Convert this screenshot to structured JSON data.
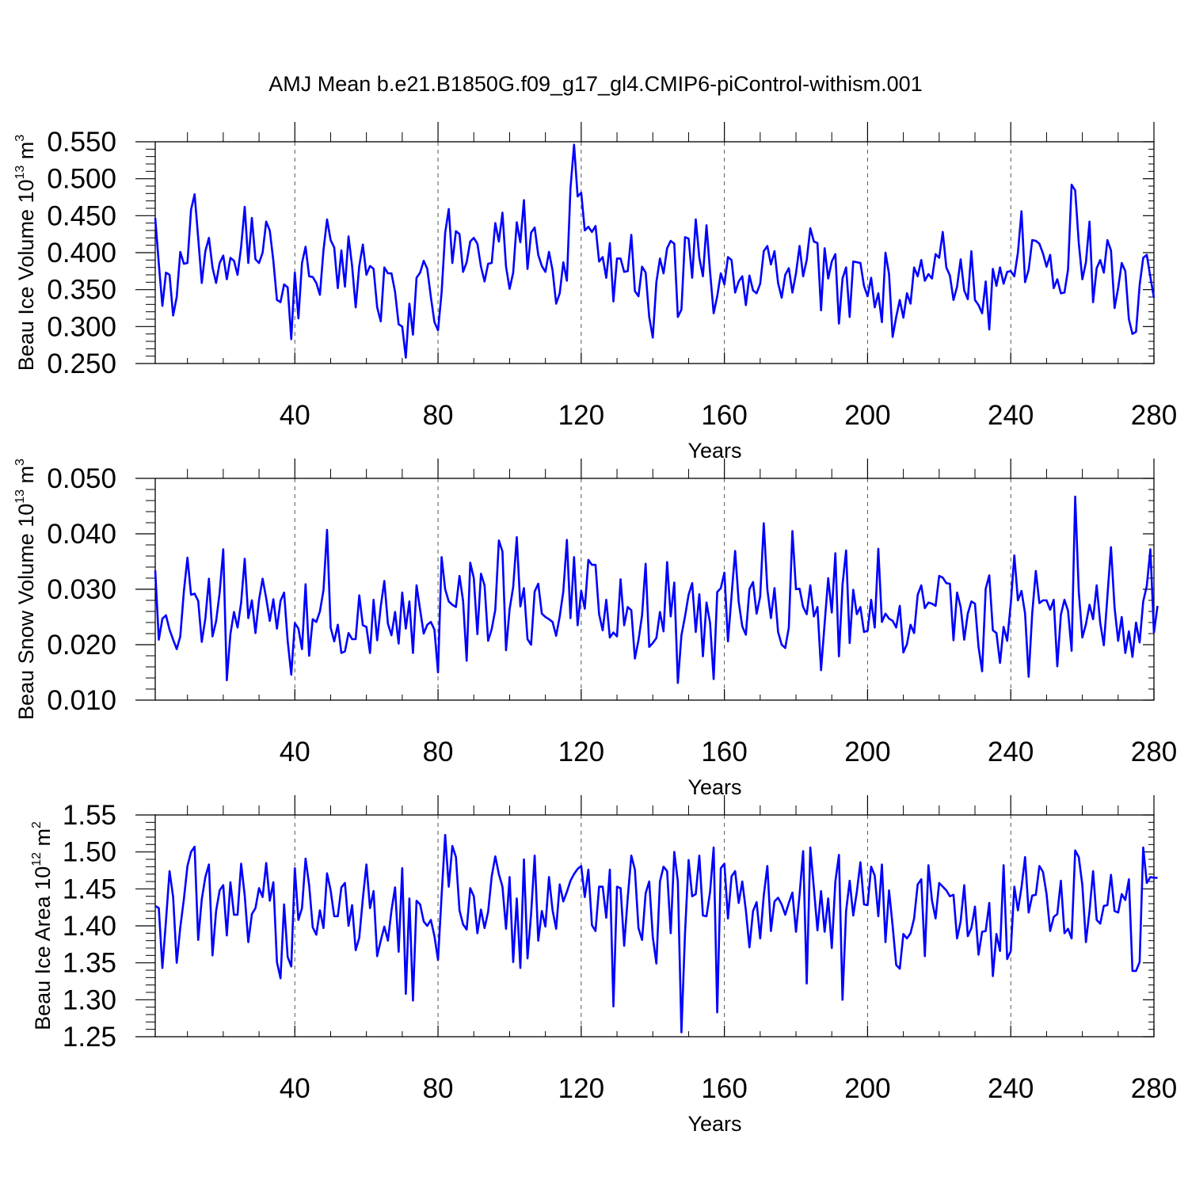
{
  "title": "AMJ Mean b.e21.B1850G.f09_g17_gl4.CMIP6-piControl-withism.001",
  "colors": {
    "series": "#0000ff",
    "axis": "#000000",
    "grid": "#555555"
  },
  "chart_data": [
    {
      "type": "line",
      "ylabel": {
        "main": "Beau Ice Volume 10",
        "exp": "13",
        "unit": " m",
        "unit_exp": "3"
      },
      "xlabel": "Years",
      "xlim": [
        1,
        280
      ],
      "ylim": [
        0.25,
        0.55
      ],
      "xticks": [
        40,
        80,
        120,
        160,
        200,
        240,
        280
      ],
      "xtick_labels": [
        "40",
        "80",
        "120",
        "160",
        "200",
        "240",
        "280"
      ],
      "yticks": [
        0.25,
        0.3,
        0.35,
        0.4,
        0.45,
        0.5,
        0.55
      ],
      "ytick_labels": [
        "0.250",
        "0.300",
        "0.350",
        "0.400",
        "0.450",
        "0.500",
        "0.550"
      ],
      "x_start": 1,
      "series": [
        {
          "name": "Beau Ice Volume",
          "values": [
            0.447,
            0.385,
            0.328,
            0.373,
            0.37,
            0.315,
            0.34,
            0.401,
            0.385,
            0.386,
            0.458,
            0.479,
            0.42,
            0.359,
            0.402,
            0.42,
            0.38,
            0.359,
            0.386,
            0.396,
            0.364,
            0.393,
            0.389,
            0.37,
            0.408,
            0.462,
            0.386,
            0.447,
            0.391,
            0.386,
            0.4,
            0.442,
            0.43,
            0.389,
            0.336,
            0.333,
            0.357,
            0.353,
            0.283,
            0.373,
            0.311,
            0.386,
            0.408,
            0.368,
            0.367,
            0.359,
            0.343,
            0.403,
            0.445,
            0.417,
            0.407,
            0.352,
            0.403,
            0.354,
            0.422,
            0.382,
            0.326,
            0.382,
            0.411,
            0.37,
            0.382,
            0.378,
            0.326,
            0.307,
            0.38,
            0.372,
            0.372,
            0.347,
            0.303,
            0.3,
            0.258,
            0.331,
            0.289,
            0.366,
            0.373,
            0.389,
            0.378,
            0.34,
            0.306,
            0.295,
            0.346,
            0.427,
            0.459,
            0.386,
            0.429,
            0.425,
            0.374,
            0.387,
            0.415,
            0.42,
            0.412,
            0.381,
            0.361,
            0.385,
            0.386,
            0.44,
            0.415,
            0.454,
            0.381,
            0.351,
            0.373,
            0.441,
            0.414,
            0.471,
            0.378,
            0.427,
            0.434,
            0.397,
            0.382,
            0.374,
            0.401,
            0.376,
            0.331,
            0.345,
            0.387,
            0.362,
            0.487,
            0.546,
            0.476,
            0.481,
            0.43,
            0.435,
            0.428,
            0.436,
            0.388,
            0.394,
            0.366,
            0.413,
            0.334,
            0.392,
            0.392,
            0.374,
            0.375,
            0.424,
            0.348,
            0.341,
            0.381,
            0.373,
            0.313,
            0.285,
            0.36,
            0.392,
            0.372,
            0.406,
            0.416,
            0.412,
            0.313,
            0.323,
            0.421,
            0.419,
            0.366,
            0.445,
            0.393,
            0.368,
            0.437,
            0.374,
            0.318,
            0.341,
            0.372,
            0.357,
            0.394,
            0.39,
            0.346,
            0.361,
            0.368,
            0.329,
            0.369,
            0.349,
            0.345,
            0.358,
            0.402,
            0.409,
            0.384,
            0.402,
            0.359,
            0.339,
            0.37,
            0.379,
            0.346,
            0.372,
            0.409,
            0.368,
            0.39,
            0.433,
            0.415,
            0.413,
            0.322,
            0.406,
            0.365,
            0.388,
            0.398,
            0.304,
            0.365,
            0.38,
            0.313,
            0.388,
            0.387,
            0.386,
            0.355,
            0.341,
            0.366,
            0.326,
            0.345,
            0.306,
            0.4,
            0.371,
            0.286,
            0.313,
            0.336,
            0.312,
            0.345,
            0.331,
            0.38,
            0.368,
            0.39,
            0.362,
            0.371,
            0.365,
            0.398,
            0.393,
            0.428,
            0.38,
            0.369,
            0.336,
            0.354,
            0.391,
            0.349,
            0.337,
            0.402,
            0.336,
            0.329,
            0.318,
            0.361,
            0.296,
            0.378,
            0.355,
            0.38,
            0.358,
            0.374,
            0.375,
            0.368,
            0.4,
            0.456,
            0.36,
            0.377,
            0.417,
            0.416,
            0.412,
            0.399,
            0.381,
            0.397,
            0.352,
            0.364,
            0.345,
            0.346,
            0.377,
            0.492,
            0.484,
            0.413,
            0.364,
            0.387,
            0.442,
            0.333,
            0.379,
            0.39,
            0.373,
            0.417,
            0.403,
            0.325,
            0.352,
            0.386,
            0.375,
            0.31,
            0.29,
            0.293,
            0.356,
            0.393,
            0.397,
            0.367,
            0.339
          ]
        }
      ]
    },
    {
      "type": "line",
      "ylabel": {
        "main": "Beau Snow Volume 10",
        "exp": "13",
        "unit": " m",
        "unit_exp": "3"
      },
      "xlabel": "Years",
      "xlim": [
        1,
        280
      ],
      "ylim": [
        0.01,
        0.05
      ],
      "xticks": [
        40,
        80,
        120,
        160,
        200,
        240,
        280
      ],
      "xtick_labels": [
        "40",
        "80",
        "120",
        "160",
        "200",
        "240",
        "280"
      ],
      "yticks": [
        0.01,
        0.02,
        0.03,
        0.04,
        0.05
      ],
      "ytick_labels": [
        "0.010",
        "0.020",
        "0.030",
        "0.040",
        "0.050"
      ],
      "x_start": 1,
      "series": [
        {
          "name": "Beau Snow Volume",
          "values": [
            0.0334,
            0.0209,
            0.0247,
            0.0253,
            0.0227,
            0.0209,
            0.0192,
            0.0215,
            0.0296,
            0.0357,
            0.029,
            0.0292,
            0.0279,
            0.0205,
            0.0247,
            0.0319,
            0.0215,
            0.0242,
            0.0294,
            0.0372,
            0.0136,
            0.0219,
            0.0259,
            0.0231,
            0.0276,
            0.0355,
            0.0248,
            0.028,
            0.0221,
            0.0281,
            0.0319,
            0.0284,
            0.0243,
            0.0282,
            0.0229,
            0.0279,
            0.0294,
            0.0207,
            0.0146,
            0.0239,
            0.0229,
            0.0192,
            0.0309,
            0.018,
            0.0246,
            0.0241,
            0.026,
            0.0298,
            0.0407,
            0.0231,
            0.0206,
            0.0236,
            0.0185,
            0.0188,
            0.0221,
            0.021,
            0.021,
            0.0289,
            0.0235,
            0.0232,
            0.0185,
            0.0281,
            0.0208,
            0.0269,
            0.0315,
            0.0238,
            0.0217,
            0.0259,
            0.0202,
            0.0294,
            0.0229,
            0.0278,
            0.0185,
            0.0307,
            0.0263,
            0.022,
            0.0236,
            0.0241,
            0.0227,
            0.015,
            0.0358,
            0.03,
            0.0278,
            0.0272,
            0.0268,
            0.0324,
            0.0279,
            0.0171,
            0.0348,
            0.032,
            0.0219,
            0.0328,
            0.0307,
            0.0207,
            0.0228,
            0.0263,
            0.0388,
            0.0368,
            0.019,
            0.0264,
            0.0304,
            0.0394,
            0.0269,
            0.0302,
            0.021,
            0.02,
            0.0296,
            0.031,
            0.0256,
            0.025,
            0.0246,
            0.0241,
            0.0216,
            0.0251,
            0.0296,
            0.0389,
            0.0248,
            0.0358,
            0.0235,
            0.0297,
            0.0265,
            0.0353,
            0.0344,
            0.0344,
            0.0255,
            0.0226,
            0.0281,
            0.0213,
            0.0222,
            0.0215,
            0.0318,
            0.0235,
            0.0268,
            0.0262,
            0.0175,
            0.0208,
            0.0253,
            0.0346,
            0.0196,
            0.0203,
            0.0212,
            0.0259,
            0.0224,
            0.0349,
            0.0251,
            0.0312,
            0.0131,
            0.0217,
            0.0251,
            0.029,
            0.0311,
            0.0223,
            0.0291,
            0.0179,
            0.0276,
            0.0239,
            0.0138,
            0.0295,
            0.0302,
            0.033,
            0.0206,
            0.0288,
            0.0369,
            0.0277,
            0.0233,
            0.0218,
            0.03,
            0.0313,
            0.0256,
            0.0287,
            0.0419,
            0.03,
            0.0248,
            0.0302,
            0.0223,
            0.02,
            0.0194,
            0.0231,
            0.0405,
            0.03,
            0.0301,
            0.0268,
            0.0255,
            0.0307,
            0.0251,
            0.0268,
            0.0154,
            0.0238,
            0.032,
            0.0258,
            0.0365,
            0.0179,
            0.0308,
            0.037,
            0.0203,
            0.0299,
            0.0255,
            0.0268,
            0.0223,
            0.0225,
            0.0281,
            0.0231,
            0.0373,
            0.0241,
            0.0256,
            0.0247,
            0.0243,
            0.0231,
            0.027,
            0.0186,
            0.0201,
            0.0236,
            0.0221,
            0.029,
            0.0307,
            0.0266,
            0.0276,
            0.0274,
            0.027,
            0.0324,
            0.0321,
            0.0311,
            0.031,
            0.0208,
            0.0294,
            0.0268,
            0.0209,
            0.0256,
            0.0278,
            0.0274,
            0.0196,
            0.0152,
            0.0301,
            0.0325,
            0.0226,
            0.0221,
            0.0167,
            0.0232,
            0.0207,
            0.0274,
            0.0361,
            0.028,
            0.0297,
            0.0256,
            0.0142,
            0.0257,
            0.0333,
            0.0275,
            0.028,
            0.028,
            0.0263,
            0.0281,
            0.0161,
            0.0254,
            0.0281,
            0.0261,
            0.0189,
            0.0467,
            0.0296,
            0.0213,
            0.0237,
            0.0272,
            0.0246,
            0.0307,
            0.0239,
            0.0199,
            0.0287,
            0.0376,
            0.0267,
            0.0207,
            0.025,
            0.0185,
            0.0224,
            0.0178,
            0.024,
            0.0204,
            0.0278,
            0.0306,
            0.0372,
            0.0222,
            0.027
          ]
        }
      ]
    },
    {
      "type": "line",
      "ylabel": {
        "main": "Beau Ice Area 10",
        "exp": "12",
        "unit": " m",
        "unit_exp": "2"
      },
      "xlabel": "Years",
      "xlim": [
        1,
        280
      ],
      "ylim": [
        1.25,
        1.55
      ],
      "xticks": [
        40,
        80,
        120,
        160,
        200,
        240,
        280
      ],
      "xtick_labels": [
        "40",
        "80",
        "120",
        "160",
        "200",
        "240",
        "280"
      ],
      "yticks": [
        1.25,
        1.3,
        1.35,
        1.4,
        1.45,
        1.5,
        1.55
      ],
      "ytick_labels": [
        "1.25",
        "1.30",
        "1.35",
        "1.40",
        "1.45",
        "1.50",
        "1.55"
      ],
      "x_start": 1,
      "series": [
        {
          "name": "Beau Ice Area",
          "values": [
            1.427,
            1.424,
            1.343,
            1.407,
            1.474,
            1.439,
            1.35,
            1.398,
            1.436,
            1.481,
            1.5,
            1.507,
            1.381,
            1.436,
            1.466,
            1.483,
            1.36,
            1.42,
            1.448,
            1.455,
            1.387,
            1.459,
            1.415,
            1.415,
            1.484,
            1.441,
            1.378,
            1.416,
            1.424,
            1.451,
            1.439,
            1.485,
            1.434,
            1.459,
            1.351,
            1.329,
            1.429,
            1.358,
            1.345,
            1.478,
            1.408,
            1.424,
            1.491,
            1.455,
            1.398,
            1.388,
            1.421,
            1.397,
            1.471,
            1.448,
            1.413,
            1.413,
            1.452,
            1.458,
            1.4,
            1.428,
            1.367,
            1.384,
            1.437,
            1.483,
            1.424,
            1.447,
            1.359,
            1.38,
            1.399,
            1.38,
            1.421,
            1.452,
            1.365,
            1.478,
            1.308,
            1.437,
            1.299,
            1.434,
            1.429,
            1.406,
            1.4,
            1.408,
            1.386,
            1.354,
            1.441,
            1.523,
            1.453,
            1.508,
            1.493,
            1.421,
            1.402,
            1.395,
            1.451,
            1.44,
            1.39,
            1.422,
            1.397,
            1.419,
            1.467,
            1.494,
            1.47,
            1.453,
            1.396,
            1.466,
            1.351,
            1.437,
            1.343,
            1.49,
            1.356,
            1.416,
            1.495,
            1.38,
            1.42,
            1.399,
            1.466,
            1.421,
            1.396,
            1.456,
            1.433,
            1.446,
            1.461,
            1.47,
            1.477,
            1.481,
            1.439,
            1.476,
            1.401,
            1.393,
            1.453,
            1.453,
            1.411,
            1.476,
            1.291,
            1.453,
            1.451,
            1.373,
            1.438,
            1.495,
            1.476,
            1.397,
            1.381,
            1.444,
            1.46,
            1.385,
            1.349,
            1.46,
            1.48,
            1.474,
            1.39,
            1.5,
            1.46,
            1.256,
            1.39,
            1.489,
            1.44,
            1.443,
            1.495,
            1.414,
            1.413,
            1.446,
            1.506,
            1.283,
            1.478,
            1.484,
            1.41,
            1.467,
            1.474,
            1.431,
            1.46,
            1.421,
            1.371,
            1.42,
            1.432,
            1.383,
            1.441,
            1.481,
            1.393,
            1.433,
            1.438,
            1.429,
            1.415,
            1.431,
            1.445,
            1.392,
            1.442,
            1.501,
            1.322,
            1.506,
            1.451,
            1.394,
            1.447,
            1.392,
            1.437,
            1.37,
            1.46,
            1.496,
            1.3,
            1.42,
            1.461,
            1.414,
            1.446,
            1.486,
            1.429,
            1.428,
            1.48,
            1.468,
            1.413,
            1.483,
            1.378,
            1.448,
            1.4,
            1.347,
            1.342,
            1.389,
            1.383,
            1.39,
            1.41,
            1.456,
            1.463,
            1.359,
            1.482,
            1.434,
            1.41,
            1.458,
            1.453,
            1.448,
            1.44,
            1.442,
            1.383,
            1.406,
            1.455,
            1.386,
            1.397,
            1.426,
            1.361,
            1.392,
            1.393,
            1.431,
            1.332,
            1.389,
            1.366,
            1.482,
            1.355,
            1.366,
            1.453,
            1.421,
            1.452,
            1.493,
            1.418,
            1.441,
            1.442,
            1.481,
            1.473,
            1.443,
            1.393,
            1.412,
            1.416,
            1.461,
            1.39,
            1.396,
            1.383,
            1.502,
            1.493,
            1.455,
            1.378,
            1.42,
            1.474,
            1.408,
            1.403,
            1.427,
            1.428,
            1.469,
            1.42,
            1.418,
            1.443,
            1.435,
            1.463,
            1.339,
            1.339,
            1.351,
            1.506,
            1.458,
            1.466,
            1.465,
            1.465
          ]
        }
      ]
    }
  ]
}
